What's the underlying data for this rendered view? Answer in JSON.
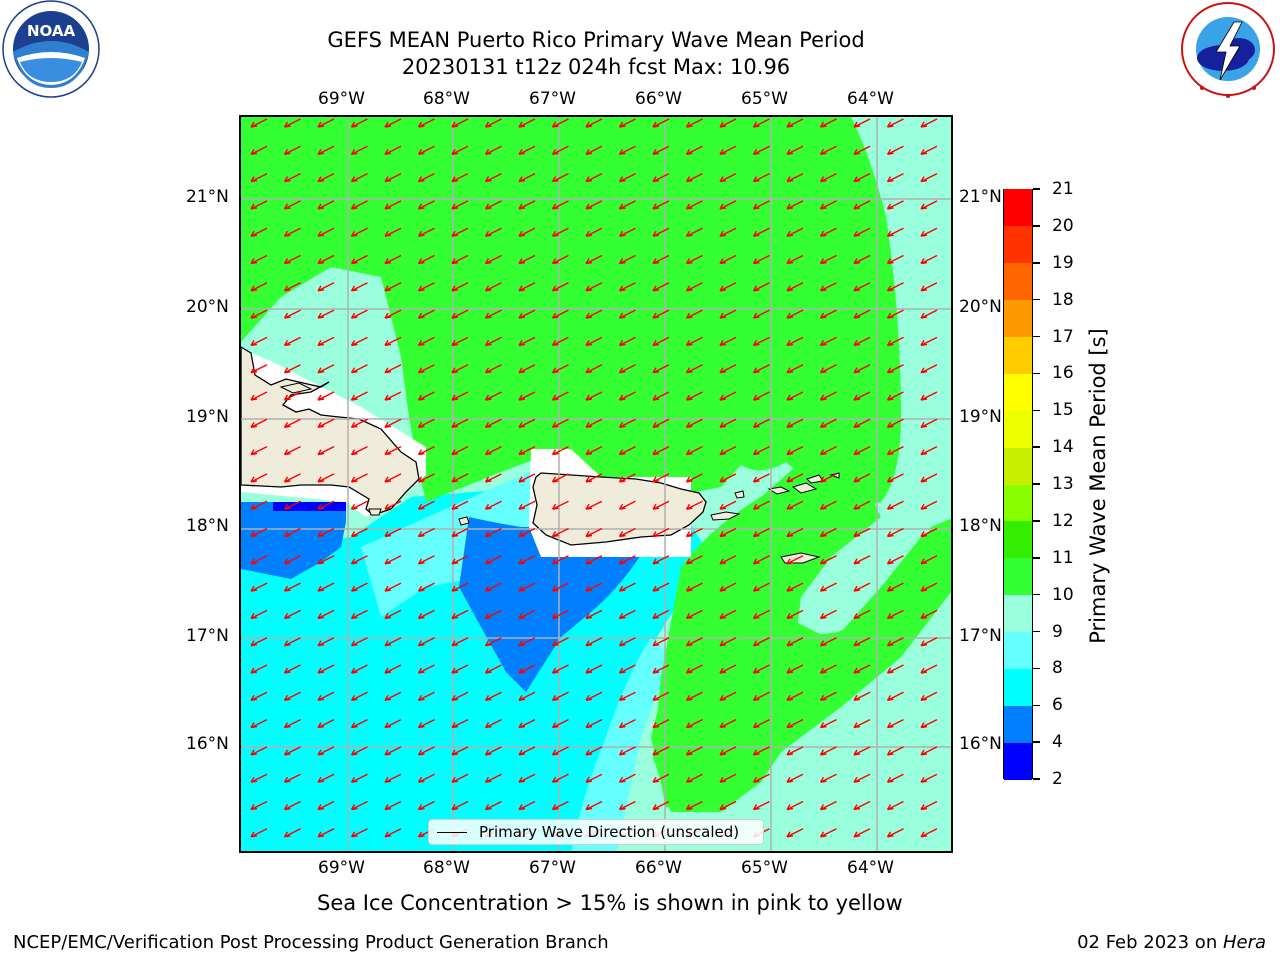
{
  "header": {
    "title_line1": "GEFS MEAN Puerto Rico Primary Wave Mean Period",
    "title_line2": "20230131 t12z 024h fcst   Max: 10.96"
  },
  "logos": {
    "noaa": {
      "icon": "noaa-logo-icon",
      "text": "NOAA",
      "ring_text": "NATIONAL OCEANIC AND ATMOSPHERIC ADMINISTRATION · U.S. DEPARTMENT OF COMMERCE"
    },
    "nws": {
      "icon": "nws-logo-icon",
      "ring_text": "NATIONAL WEATHER SERVICE"
    }
  },
  "map": {
    "lon_ticks": [
      "69°W",
      "68°W",
      "67°W",
      "66°W",
      "65°W",
      "64°W"
    ],
    "lat_ticks": [
      "21°N",
      "20°N",
      "19°N",
      "18°N",
      "17°N",
      "16°N"
    ],
    "legend_label": "Primary Wave Direction (unscaled)",
    "arrow_color": "#ff0000",
    "land_color": "#efecdc",
    "direction": "toward south-west"
  },
  "colorbar": {
    "label": "Primary Wave Mean Period [s]",
    "ticks": [
      "2",
      "4",
      "6",
      "8",
      "9",
      "10",
      "11",
      "12",
      "13",
      "14",
      "15",
      "16",
      "17",
      "18",
      "19",
      "20",
      "21"
    ],
    "colors": [
      "#0000ff",
      "#0080ff",
      "#00ffff",
      "#66ffff",
      "#99ffdd",
      "#33ff33",
      "#33ee00",
      "#88ff00",
      "#c8ee00",
      "#eeff00",
      "#ffff00",
      "#ffcc00",
      "#ff9900",
      "#ff6600",
      "#ff3300",
      "#ff0000"
    ]
  },
  "notes": {
    "sea_ice": "Sea Ice Concentration > 15% is shown in pink to yellow"
  },
  "footer": {
    "left": "NCEP/EMC/Verification Post Processing Product Generation Branch",
    "date": "02 Feb 2023 on ",
    "host": "Hera"
  }
}
